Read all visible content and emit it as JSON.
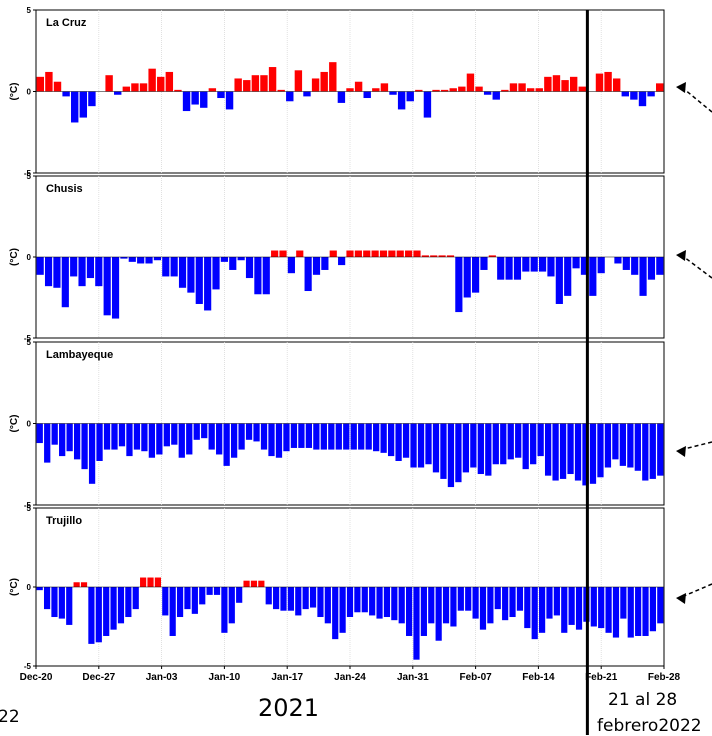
{
  "chart_data": {
    "type": "bar",
    "ylabel": "(°C)",
    "ylim": [
      -5,
      5
    ],
    "yticks": [
      "5",
      "0",
      "-5"
    ],
    "x_start": "Dec-20",
    "x_end": "Feb-28",
    "xtick_labels": [
      "Dec-20",
      "Dec-27",
      "Jan-03",
      "Jan-10",
      "Jan-17",
      "Jan-24",
      "Jan-31",
      "Feb-07",
      "Feb-14",
      "Feb-21",
      "Feb-28"
    ],
    "positive_color": "#ff0000",
    "negative_color": "#0000ff",
    "highlight_line_date": "Feb-20",
    "panels": [
      {
        "name": "La Cruz",
        "values": [
          0.9,
          1.2,
          0.6,
          -0.3,
          -1.9,
          -1.6,
          -0.9,
          0.0,
          1.0,
          -0.2,
          0.3,
          0.5,
          0.5,
          1.4,
          0.9,
          1.2,
          0.1,
          -1.2,
          -0.8,
          -1.0,
          0.2,
          -0.4,
          -1.1,
          0.8,
          0.7,
          1.0,
          1.0,
          1.5,
          0.1,
          -0.6,
          1.3,
          -0.3,
          0.8,
          1.2,
          1.8,
          -0.7,
          0.2,
          0.6,
          -0.4,
          0.2,
          0.5,
          -0.2,
          -1.1,
          -0.6,
          0.1,
          -1.6,
          0.1,
          0.1,
          0.2,
          0.3,
          1.1,
          0.3,
          -0.2,
          -0.5,
          0.1,
          0.5,
          0.5,
          0.2,
          0.2,
          0.9,
          1.0,
          0.7,
          0.9,
          0.3,
          0.0,
          1.1,
          1.2,
          0.8,
          -0.3,
          -0.5,
          -0.9,
          -0.3,
          0.5
        ]
      },
      {
        "name": "Chusis",
        "values": [
          -1.1,
          -1.8,
          -1.9,
          -3.1,
          -1.2,
          -1.8,
          -1.3,
          -1.8,
          -3.6,
          -3.8,
          -0.1,
          -0.3,
          -0.4,
          -0.4,
          -0.2,
          -1.2,
          -1.2,
          -1.9,
          -2.2,
          -2.9,
          -3.3,
          -2.0,
          -0.3,
          -0.8,
          -0.2,
          -1.3,
          -2.3,
          -2.3,
          0.4,
          0.4,
          -1.0,
          0.4,
          -2.1,
          -1.1,
          -0.8,
          0.4,
          -0.5,
          0.4,
          0.4,
          0.4,
          0.4,
          0.4,
          0.4,
          0.4,
          0.4,
          0.4,
          0.1,
          0.1,
          0.1,
          0.1,
          -3.4,
          -2.5,
          -2.2,
          -0.8,
          0.1,
          -1.4,
          -1.4,
          -1.4,
          -0.9,
          -0.9,
          -0.9,
          -1.2,
          -2.9,
          -2.4,
          -0.7,
          -1.1,
          -2.4,
          -1.0,
          0.0,
          -0.4,
          -0.8,
          -1.1,
          -2.4,
          -1.4,
          -1.1
        ]
      },
      {
        "name": "Lambayeque",
        "values": [
          -1.2,
          -2.4,
          -1.3,
          -2.0,
          -1.7,
          -2.2,
          -2.8,
          -3.7,
          -2.3,
          -1.6,
          -1.6,
          -1.4,
          -2.0,
          -1.6,
          -1.7,
          -2.1,
          -1.9,
          -1.4,
          -1.3,
          -2.1,
          -1.9,
          -1.0,
          -0.9,
          -1.6,
          -1.9,
          -2.6,
          -2.1,
          -1.6,
          -1.0,
          -1.1,
          -1.6,
          -2.0,
          -2.1,
          -1.7,
          -1.5,
          -1.5,
          -1.5,
          -1.6,
          -1.6,
          -1.6,
          -1.6,
          -1.6,
          -1.6,
          -1.6,
          -1.6,
          -1.7,
          -1.8,
          -2.0,
          -2.3,
          -2.1,
          -2.7,
          -2.7,
          -2.5,
          -3.0,
          -3.4,
          -3.9,
          -3.6,
          -3.0,
          -2.7,
          -3.1,
          -3.2,
          -2.5,
          -2.5,
          -2.2,
          -2.1,
          -2.8,
          -2.5,
          -2.0,
          -3.2,
          -3.5,
          -3.4,
          -3.1,
          -3.5,
          -3.8,
          -3.7,
          -3.3,
          -2.7,
          -2.2,
          -2.6,
          -2.7,
          -2.9,
          -3.5,
          -3.4,
          -3.2
        ]
      },
      {
        "name": "Trujillo",
        "values": [
          -0.2,
          -1.4,
          -1.9,
          -2.0,
          -2.4,
          0.3,
          0.3,
          -3.6,
          -3.5,
          -3.1,
          -2.7,
          -2.3,
          -1.9,
          -1.4,
          0.6,
          0.6,
          0.6,
          -1.8,
          -3.1,
          -1.9,
          -1.4,
          -1.7,
          -1.1,
          -0.5,
          -0.5,
          -2.9,
          -2.3,
          -1.0,
          0.4,
          0.4,
          0.4,
          -1.1,
          -1.4,
          -1.5,
          -1.5,
          -1.8,
          -1.4,
          -1.3,
          -1.9,
          -2.3,
          -3.3,
          -2.9,
          -1.9,
          -1.6,
          -1.6,
          -1.8,
          -2.0,
          -1.9,
          -2.1,
          -2.3,
          -3.1,
          -4.6,
          -3.1,
          -2.3,
          -3.4,
          -2.3,
          -2.5,
          -1.5,
          -1.5,
          -2.0,
          -2.7,
          -2.3,
          -1.4,
          -2.1,
          -1.9,
          -1.5,
          -2.6,
          -3.3,
          -2.9,
          -2.0,
          -1.8,
          -2.9,
          -2.4,
          -2.7,
          -2.2,
          -2.5,
          -2.6,
          -2.9,
          -3.2,
          -2.0,
          -3.2,
          -3.1,
          -3.1,
          -2.8,
          -2.3
        ]
      }
    ]
  },
  "annotations": {
    "year": "2021",
    "week_line1": "21 al 28",
    "week_line2": "febrero2022",
    "clipped_left": "22"
  }
}
